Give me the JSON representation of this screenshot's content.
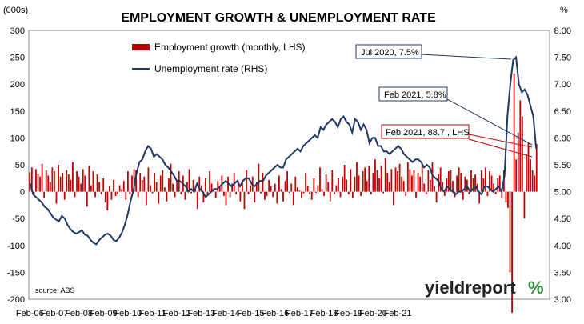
{
  "chart_data": {
    "type": "bar+line",
    "title": "EMPLOYMENT GROWTH & UNEMPLOYMENT RATE",
    "left_axis": {
      "unit_label": "(000s)",
      "ylim": [
        -200,
        300
      ],
      "ticks": [
        "-200",
        "-150",
        "-100",
        "-50",
        "0",
        "50",
        "100",
        "150",
        "200",
        "250",
        "300"
      ]
    },
    "right_axis": {
      "unit_label": "%",
      "ylim": [
        3.0,
        8.0
      ],
      "ticks": [
        "3.00",
        "3.50",
        "4.00",
        "4.50",
        "5.00",
        "5.50",
        "6.00",
        "6.50",
        "7.00",
        "7.50",
        "8.00"
      ]
    },
    "x_ticks": [
      "Feb-06",
      "Feb-07",
      "Feb-08",
      "Feb-09",
      "Feb-10",
      "Feb-11",
      "Feb-12",
      "Feb-13",
      "Feb-14",
      "Feb-15",
      "Feb-16",
      "Feb-17",
      "Feb-18",
      "Feb-19",
      "Feb-20",
      "Feb-21"
    ],
    "legend": [
      {
        "label": "Employment growth (monthly, LHS)",
        "color": "#c00000",
        "kind": "bar"
      },
      {
        "label": "Unemployment rate (RHS)",
        "color": "#1f3864",
        "kind": "line"
      }
    ],
    "colors": {
      "bar": "#c00000",
      "line": "#1f3864",
      "callout_blue": "#1f3864",
      "callout_red": "#c00000",
      "plot_border": "#888888"
    },
    "series": [
      {
        "name": "Employment growth (monthly, LHS)",
        "values": [
          36,
          45,
          -8,
          42,
          34,
          28,
          52,
          -12,
          40,
          30,
          18,
          45,
          38,
          -22,
          50,
          28,
          35,
          -15,
          40,
          32,
          22,
          55,
          -10,
          38,
          28,
          15,
          42,
          30,
          -28,
          48,
          12,
          38,
          -10,
          32,
          18,
          -5,
          25,
          -20,
          -35,
          10,
          -15,
          22,
          -8,
          -5,
          12,
          5,
          20,
          -15,
          38,
          -5,
          30,
          42,
          40,
          -10,
          35,
          22,
          28,
          -25,
          45,
          12,
          -3,
          35,
          18,
          -22,
          30,
          40,
          8,
          -18,
          25,
          52,
          15,
          -10,
          20,
          38,
          -5,
          30,
          -15,
          18,
          42,
          -3,
          22,
          5,
          -32,
          28,
          12,
          -20,
          25,
          -5,
          38,
          15,
          2,
          -12,
          20,
          8,
          30,
          -8,
          -25,
          28,
          -10,
          15,
          35,
          -5,
          20,
          -18,
          22,
          -32,
          40,
          -5,
          12,
          28,
          -20,
          18,
          52,
          -3,
          35,
          -15,
          -8,
          22,
          10,
          -10,
          15,
          -22,
          30,
          5,
          -18,
          20,
          38,
          -2,
          15,
          -25,
          28,
          8,
          2,
          -12,
          -3,
          35,
          10,
          -5,
          -15,
          25,
          -2,
          12,
          45,
          5,
          -8,
          32,
          18,
          -18,
          40,
          -5,
          12,
          25,
          -10,
          28,
          50,
          22,
          -5,
          42,
          -12,
          28,
          55,
          30,
          -8,
          38,
          45,
          20,
          48,
          -5,
          35,
          60,
          40,
          25,
          48,
          -3,
          62,
          35,
          18,
          42,
          -25,
          45,
          38,
          52,
          28,
          20,
          -8,
          55,
          42,
          30,
          40,
          -12,
          35,
          28,
          48,
          15,
          -5,
          40,
          22,
          55,
          10,
          -20,
          32,
          45,
          18,
          -8,
          25,
          38,
          40,
          20,
          -10,
          30,
          45,
          35,
          -15,
          28,
          22,
          -5,
          40,
          25,
          32,
          15,
          -22,
          40,
          25,
          45,
          -8,
          38,
          30,
          15,
          -5,
          25,
          30,
          -12,
          40,
          -20,
          -30,
          -150,
          -225,
          220,
          60,
          110,
          170,
          140,
          -50,
          70,
          90,
          60,
          40,
          30,
          88.7
        ],
        "note": "monthly values, Feb-06 to Feb-21 (approximate readings)"
      },
      {
        "name": "Unemployment rate (RHS)",
        "values": [
          5.15,
          4.95,
          4.9,
          4.85,
          4.8,
          4.72,
          4.68,
          4.6,
          4.52,
          4.48,
          4.45,
          4.55,
          4.5,
          4.38,
          4.3,
          4.25,
          4.22,
          4.25,
          4.28,
          4.2,
          4.18,
          4.1,
          4.05,
          4.02,
          4.1,
          4.15,
          4.2,
          4.22,
          4.18,
          4.1,
          4.08,
          4.15,
          4.25,
          4.4,
          4.6,
          4.85,
          5.05,
          5.35,
          5.55,
          5.6,
          5.75,
          5.85,
          5.8,
          5.65,
          5.7,
          5.65,
          5.6,
          5.5,
          5.45,
          5.38,
          5.3,
          5.2,
          5.2,
          5.15,
          5.1,
          5.0,
          5.05,
          5.0,
          5.15,
          5.05,
          5.0,
          4.9,
          4.95,
          5.0,
          5.05,
          5.05,
          5.1,
          5.15,
          5.2,
          5.15,
          5.1,
          5.15,
          5.2,
          5.1,
          5.2,
          5.25,
          5.25,
          5.15,
          5.1,
          5.15,
          5.2,
          5.2,
          5.3,
          5.35,
          5.4,
          5.45,
          5.5,
          5.45,
          5.45,
          5.6,
          5.65,
          5.7,
          5.75,
          5.8,
          5.75,
          5.85,
          5.9,
          5.95,
          6.0,
          6.05,
          6.0,
          6.2,
          6.15,
          6.25,
          6.3,
          6.35,
          6.3,
          6.2,
          6.35,
          6.4,
          6.3,
          6.25,
          6.1,
          6.35,
          6.3,
          6.15,
          6.25,
          6.15,
          5.9,
          6.0,
          6.0,
          5.85,
          5.85,
          5.75,
          5.75,
          5.7,
          5.75,
          5.8,
          5.85,
          5.8,
          5.7,
          5.65,
          5.6,
          5.55,
          5.6,
          5.6,
          5.55,
          5.45,
          5.5,
          5.45,
          5.3,
          5.25,
          5.2,
          5.05,
          5.0,
          5.1,
          5.05,
          5.0,
          4.95,
          5.0,
          5.0,
          5.05,
          5.1,
          5.0,
          5.05,
          5.1,
          5.0,
          4.95,
          5.1,
          5.1,
          5.05,
          5.0,
          5.05,
          5.1,
          5.0,
          5.3,
          6.4,
          7.0,
          7.45,
          7.5,
          7.0,
          6.85,
          6.9,
          6.8,
          6.6,
          6.4,
          5.8
        ],
        "note": "monthly values, Feb-06 to Feb-21 (approximate readings)"
      }
    ],
    "annotations": [
      {
        "text": "Jul 2020, 7.5%",
        "style": "blue"
      },
      {
        "text": "Feb 2021, 5.8%",
        "style": "blue"
      },
      {
        "text": "Feb 2021, 88.7 , LHS",
        "style": "red"
      }
    ],
    "source": "source: ABS",
    "watermark": {
      "text": "yieldreport",
      "glyph": "%"
    }
  }
}
